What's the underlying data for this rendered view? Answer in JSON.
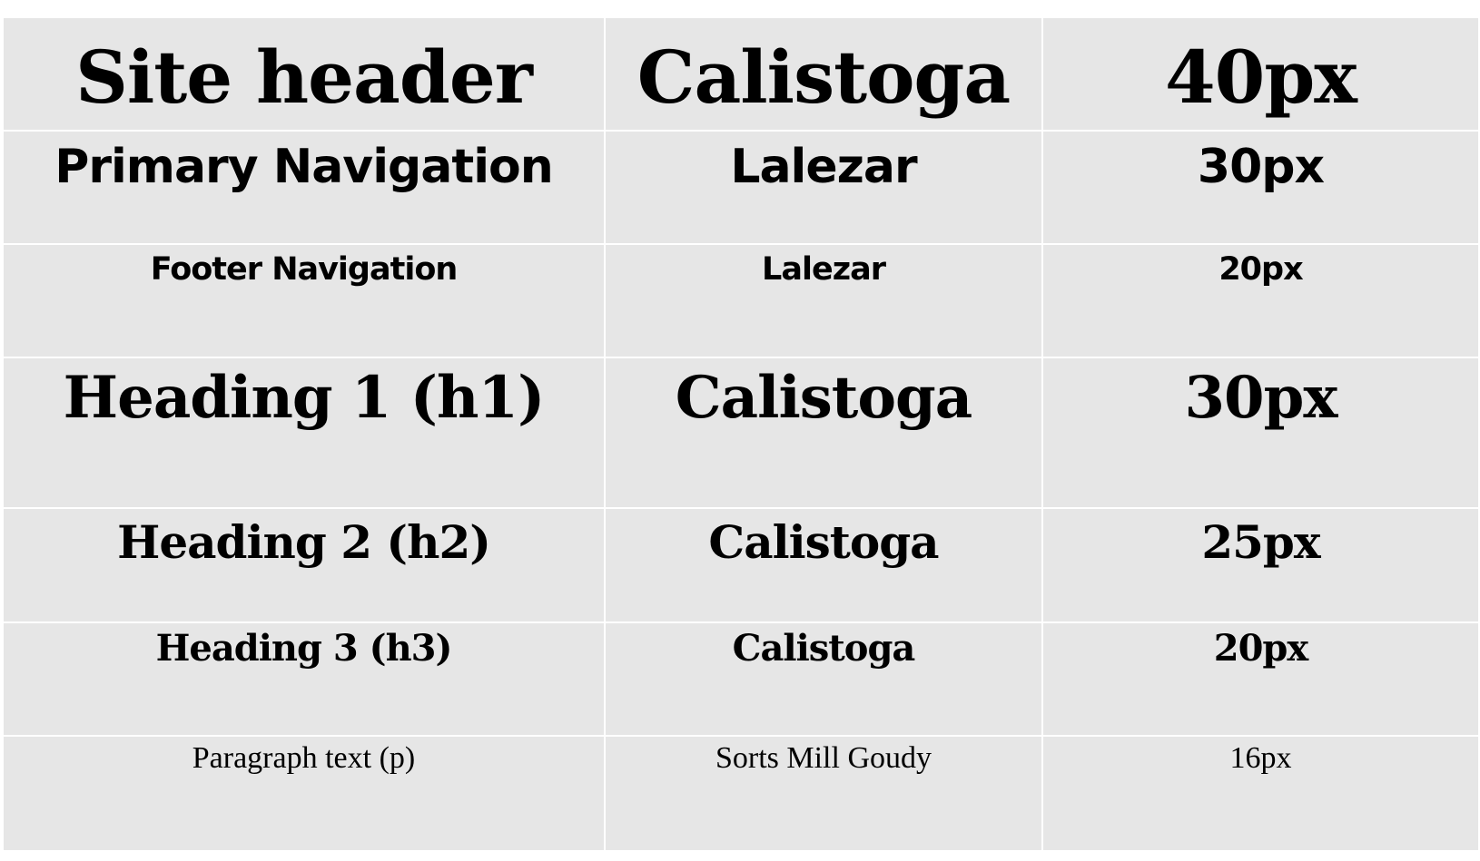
{
  "table": {
    "rows": [
      {
        "element": "Site header",
        "font": "Calistoga",
        "size": "40px"
      },
      {
        "element": "Primary Navigation",
        "font": "Lalezar",
        "size": "30px"
      },
      {
        "element": "Footer Navigation",
        "font": "Lalezar",
        "size": "20px"
      },
      {
        "element": "Heading 1 (h1)",
        "font": "Calistoga",
        "size": "30px"
      },
      {
        "element": "Heading 2 (h2)",
        "font": "Calistoga",
        "size": "25px"
      },
      {
        "element": "Heading 3 (h3)",
        "font": "Calistoga",
        "size": "20px"
      },
      {
        "element": "Paragraph text (p)",
        "font": "Sorts Mill Goudy",
        "size": "16px"
      }
    ]
  },
  "colors": {
    "cell_background": "#e6e6e6",
    "grid_lines": "#ffffff",
    "text": "#000000"
  }
}
